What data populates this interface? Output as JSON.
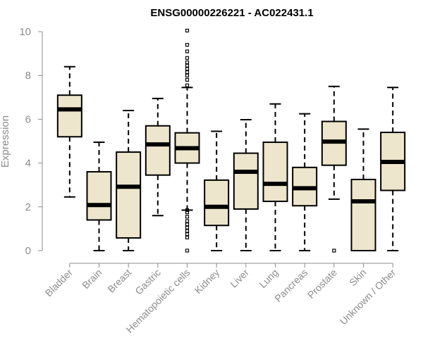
{
  "chart_data": {
    "type": "box",
    "title": "ENSG00000226221 - AC022431.1",
    "xlabel": "",
    "ylabel": "Expression",
    "ylim": [
      0,
      10
    ],
    "yticks": [
      0,
      2,
      4,
      6,
      8,
      10
    ],
    "grid": false,
    "colors": {
      "box_fill": "#ede6cc",
      "stroke": "#000000",
      "axis": "#8c8c8c"
    },
    "categories": [
      "Bladder",
      "Brain",
      "Breast",
      "Gastric",
      "Hematopoietic cells",
      "Kidney",
      "Liver",
      "Lung",
      "Pancreas",
      "Prostate",
      "Skin",
      "Unknown / Other"
    ],
    "boxes": [
      {
        "category": "Bladder",
        "whisker_low": 2.45,
        "q1": 5.2,
        "median": 6.45,
        "q3": 7.1,
        "whisker_high": 8.4,
        "outliers": []
      },
      {
        "category": "Brain",
        "whisker_low": 0,
        "q1": 1.4,
        "median": 2.08,
        "q3": 3.6,
        "whisker_high": 4.95,
        "outliers": []
      },
      {
        "category": "Breast",
        "whisker_low": 0,
        "q1": 0.58,
        "median": 2.92,
        "q3": 4.5,
        "whisker_high": 6.4,
        "outliers": []
      },
      {
        "category": "Gastric",
        "whisker_low": 1.6,
        "q1": 3.45,
        "median": 4.85,
        "q3": 5.7,
        "whisker_high": 6.95,
        "outliers": []
      },
      {
        "category": "Hematopoietic cells",
        "whisker_low": 1.85,
        "q1": 4.0,
        "median": 4.68,
        "q3": 5.38,
        "whisker_high": 7.45,
        "outliers": [
          0,
          0.6,
          0.75,
          0.9,
          1.05,
          1.2,
          1.35,
          1.55,
          1.75,
          1.85,
          7.55,
          7.8,
          8.0,
          8.15,
          8.3,
          8.45,
          8.6,
          8.8,
          9.1,
          9.4,
          10.05
        ]
      },
      {
        "category": "Kidney",
        "whisker_low": 0,
        "q1": 1.15,
        "median": 2.0,
        "q3": 3.22,
        "whisker_high": 5.45,
        "outliers": []
      },
      {
        "category": "Liver",
        "whisker_low": 0,
        "q1": 1.9,
        "median": 3.6,
        "q3": 4.45,
        "whisker_high": 5.98,
        "outliers": []
      },
      {
        "category": "Lung",
        "whisker_low": 0,
        "q1": 2.25,
        "median": 3.05,
        "q3": 4.95,
        "whisker_high": 6.7,
        "outliers": []
      },
      {
        "category": "Pancreas",
        "whisker_low": 0,
        "q1": 2.05,
        "median": 2.85,
        "q3": 3.8,
        "whisker_high": 6.25,
        "outliers": []
      },
      {
        "category": "Prostate",
        "whisker_low": 2.35,
        "q1": 3.9,
        "median": 4.98,
        "q3": 5.9,
        "whisker_high": 7.5,
        "outliers": [
          0
        ]
      },
      {
        "category": "Skin",
        "whisker_low": 0,
        "q1": 0,
        "median": 2.25,
        "q3": 3.25,
        "whisker_high": 5.55,
        "outliers": []
      },
      {
        "category": "Unknown / Other",
        "whisker_low": 0,
        "q1": 2.75,
        "median": 4.05,
        "q3": 5.4,
        "whisker_high": 7.45,
        "outliers": []
      }
    ]
  }
}
